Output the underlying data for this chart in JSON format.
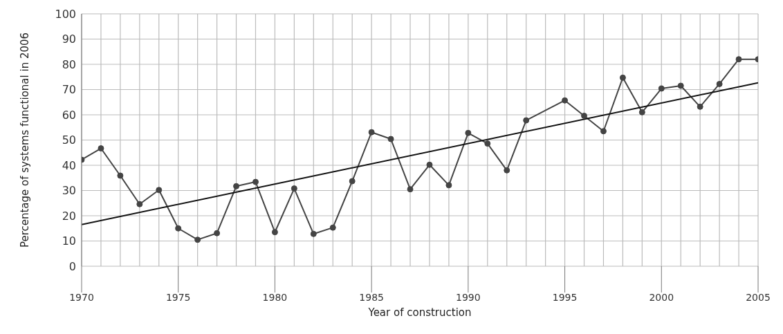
{
  "chart_data": {
    "type": "line",
    "xlabel": "Year of construction",
    "ylabel": "Percentage of systems functional in 2006",
    "x": [
      1970,
      1971,
      1972,
      1973,
      1974,
      1975,
      1976,
      1977,
      1978,
      1979,
      1980,
      1981,
      1982,
      1983,
      1984,
      1985,
      1986,
      1987,
      1988,
      1989,
      1990,
      1991,
      1992,
      1993,
      1995,
      1996,
      1997,
      1998,
      1999,
      2000,
      2001,
      2002,
      2003,
      2004,
      2005
    ],
    "series": [
      {
        "color": "#444444",
        "marker": "circle",
        "values": [
          42.2,
          46.7,
          35.9,
          24.6,
          30.2,
          15.0,
          10.5,
          13.1,
          31.7,
          33.4,
          13.5,
          30.8,
          12.8,
          15.3,
          33.7,
          53.1,
          50.4,
          30.5,
          40.2,
          32.1,
          52.8,
          48.6,
          38.0,
          57.8,
          65.7,
          59.6,
          53.5,
          74.7,
          61.0,
          70.4,
          71.5,
          63.2,
          72.2,
          82.0,
          82.0
        ]
      },
      {
        "color": "#111111",
        "marker": "none",
        "x": [
          1970,
          2005
        ],
        "values": [
          16.5,
          72.7
        ]
      }
    ],
    "xlim": [
      1970,
      2005
    ],
    "xticks": [
      1970,
      1975,
      1980,
      1985,
      1990,
      1995,
      2000,
      2005
    ],
    "ylim": [
      0,
      100
    ],
    "yticks": [
      0,
      10,
      20,
      30,
      40,
      50,
      60,
      70,
      80,
      90,
      100
    ],
    "grid": true,
    "legend": false,
    "line_style": "solid"
  }
}
